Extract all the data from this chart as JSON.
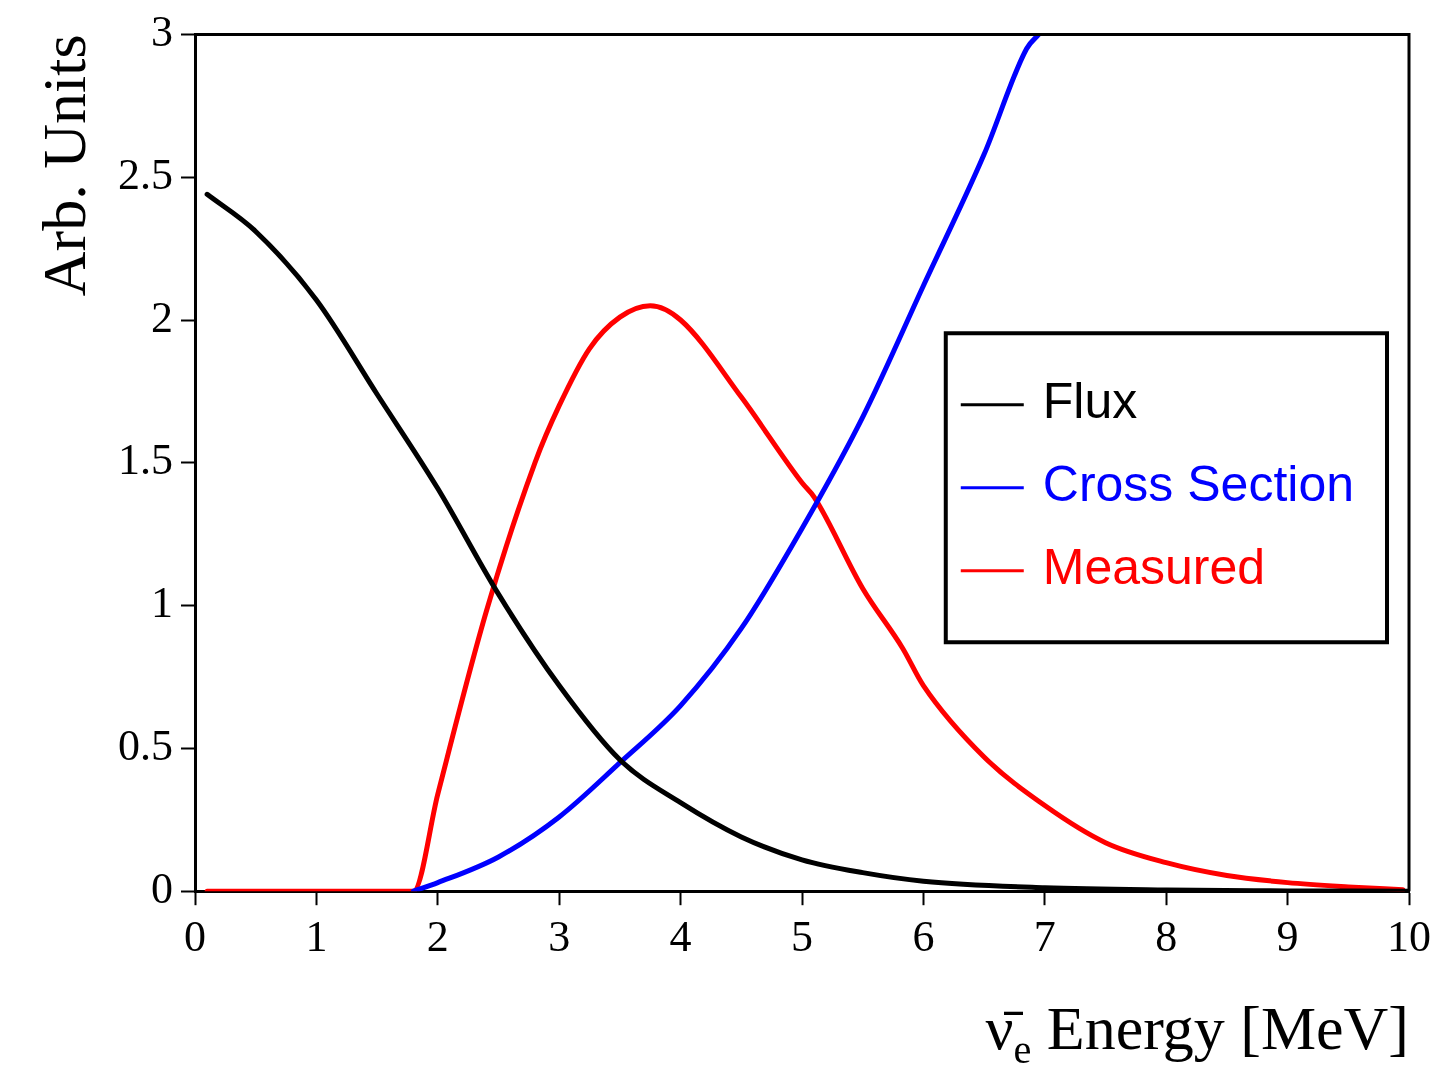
{
  "chart_data": {
    "type": "line",
    "xlabel": "ν̄$_{e}$ Energy [MeV]",
    "ylabel": "Arb. Units",
    "xlim": [
      0,
      10
    ],
    "xticks": [
      0,
      1,
      2,
      3,
      4,
      5,
      6,
      7,
      8,
      9,
      10
    ],
    "ylim": [
      0,
      3
    ],
    "yticks": [
      0,
      0.5,
      1,
      1.5,
      2,
      2.5,
      3
    ],
    "legend": "right",
    "series": [
      {
        "name": "Flux",
        "color": "#000000",
        "x": [
          0.1,
          0.5,
          1,
          1.5,
          2,
          2.5,
          3,
          3.5,
          4,
          4.5,
          5,
          5.5,
          6,
          7,
          8,
          9,
          10
        ],
        "values": [
          2.44,
          2.31,
          2.07,
          1.74,
          1.41,
          1.04,
          0.72,
          0.46,
          0.31,
          0.19,
          0.11,
          0.065,
          0.035,
          0.012,
          0.004,
          0.001,
          0
        ]
      },
      {
        "name": "Cross Section",
        "color": "#0000ff",
        "x": [
          1.8,
          2,
          2.5,
          3,
          3.5,
          4,
          4.5,
          5,
          5.5,
          6,
          6.5,
          6.85,
          6.95
        ],
        "values": [
          0,
          0.03,
          0.12,
          0.26,
          0.45,
          0.65,
          0.92,
          1.27,
          1.66,
          2.12,
          2.58,
          2.95,
          3
        ]
      },
      {
        "name": "Measured",
        "color": "#ff0000",
        "x": [
          0.1,
          1.8,
          2,
          2.4,
          2.8,
          3,
          3.25,
          3.5,
          3.75,
          4,
          4.5,
          5,
          5.1,
          5.5,
          5.83,
          6,
          6.5,
          7,
          7.5,
          8,
          8.5,
          9,
          9.5,
          9.95
        ],
        "values": [
          0,
          0,
          0.34,
          0.98,
          1.5,
          1.7,
          1.9,
          2.01,
          2.05,
          2,
          1.73,
          1.43,
          1.38,
          1.06,
          0.85,
          0.72,
          0.47,
          0.3,
          0.17,
          0.1,
          0.055,
          0.03,
          0.015,
          0.005
        ]
      }
    ]
  }
}
